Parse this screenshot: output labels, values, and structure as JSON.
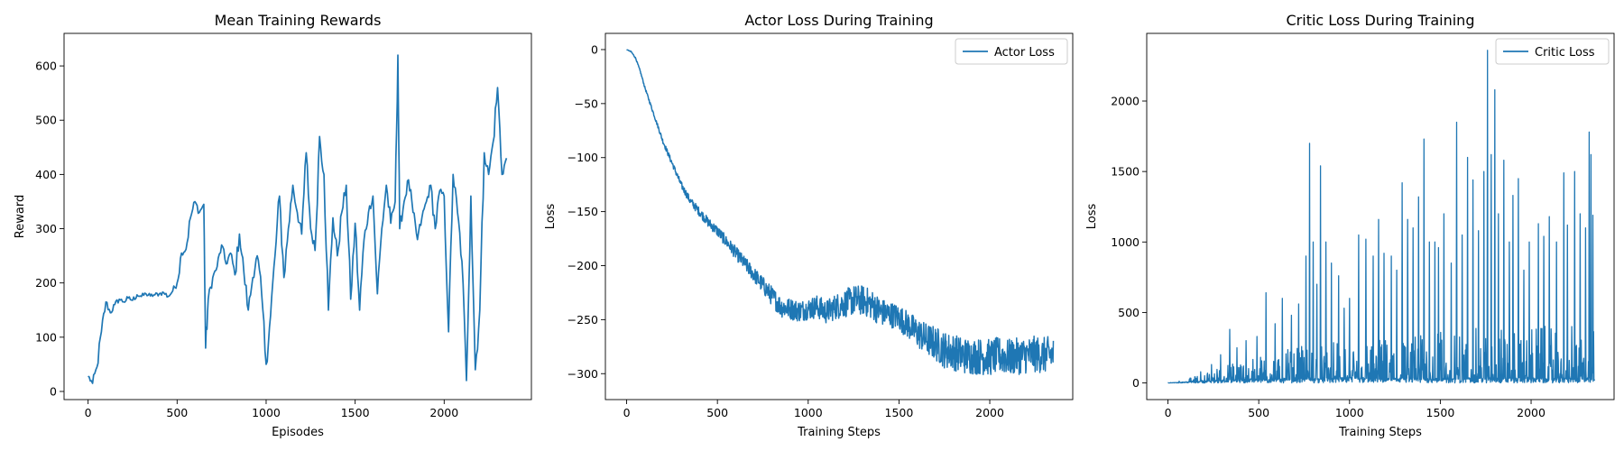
{
  "chart_data": [
    {
      "type": "line",
      "title": "Mean Training Rewards",
      "xlabel": "Episodes",
      "ylabel": "Reward",
      "xlim": [
        -135,
        2490
      ],
      "ylim": [
        -15,
        660
      ],
      "xticks": [
        0,
        500,
        1000,
        1500,
        2000
      ],
      "yticks": [
        0,
        100,
        200,
        300,
        400,
        500,
        600
      ],
      "legend": null,
      "grid": false,
      "color": "#1f77b4",
      "series": [
        {
          "x": [
            0,
            25,
            50,
            75,
            100,
            125,
            150,
            175,
            200,
            225,
            250,
            275,
            300,
            325,
            350,
            375,
            400,
            425,
            450,
            475,
            500,
            525,
            550,
            575,
            600,
            625,
            650,
            660,
            675,
            700,
            725,
            750,
            775,
            800,
            825,
            850,
            875,
            900,
            925,
            950,
            975,
            1000,
            1025,
            1050,
            1075,
            1100,
            1125,
            1150,
            1175,
            1200,
            1225,
            1250,
            1275,
            1300,
            1325,
            1350,
            1375,
            1400,
            1425,
            1450,
            1475,
            1500,
            1525,
            1550,
            1575,
            1600,
            1625,
            1650,
            1675,
            1700,
            1725,
            1740,
            1750,
            1775,
            1800,
            1825,
            1850,
            1875,
            1900,
            1925,
            1950,
            1975,
            2000,
            2025,
            2050,
            2075,
            2100,
            2125,
            2150,
            2175,
            2200,
            2225,
            2250,
            2275,
            2300,
            2325,
            2350
          ],
          "y": [
            28,
            15,
            45,
            110,
            165,
            145,
            160,
            170,
            165,
            172,
            168,
            178,
            175,
            180,
            176,
            178,
            180,
            182,
            175,
            185,
            200,
            255,
            262,
            320,
            350,
            330,
            345,
            80,
            170,
            210,
            230,
            270,
            235,
            255,
            215,
            290,
            220,
            150,
            210,
            250,
            180,
            50,
            140,
            250,
            360,
            210,
            300,
            380,
            330,
            290,
            440,
            300,
            260,
            470,
            400,
            150,
            320,
            250,
            330,
            380,
            170,
            310,
            150,
            280,
            330,
            360,
            180,
            300,
            380,
            310,
            350,
            620,
            300,
            350,
            390,
            330,
            280,
            320,
            350,
            380,
            300,
            370,
            360,
            110,
            400,
            330,
            240,
            20,
            360,
            40,
            150,
            440,
            400,
            460,
            560,
            400,
            430
          ]
        }
      ]
    },
    {
      "type": "line",
      "title": "Actor Loss During Training",
      "xlabel": "Training Steps",
      "ylabel": "Loss",
      "xlim": [
        -117,
        2457
      ],
      "ylim": [
        -324,
        15
      ],
      "xticks": [
        0,
        500,
        1000,
        1500,
        2000
      ],
      "yticks": [
        0,
        -50,
        -100,
        -150,
        -200,
        -250,
        -300
      ],
      "legend": "top-right",
      "grid": false,
      "color": "#1f77b4",
      "series": [
        {
          "name": "Actor Loss",
          "x": [
            0,
            25,
            50,
            75,
            100,
            150,
            200,
            250,
            300,
            350,
            400,
            450,
            500,
            550,
            600,
            650,
            700,
            750,
            800,
            850,
            900,
            950,
            1000,
            1050,
            1100,
            1150,
            1200,
            1250,
            1300,
            1350,
            1400,
            1450,
            1500,
            1550,
            1600,
            1650,
            1700,
            1750,
            1800,
            1850,
            1900,
            1950,
            2000,
            2050,
            2100,
            2150,
            2200,
            2250,
            2300,
            2350
          ],
          "y": [
            0,
            -2,
            -8,
            -20,
            -35,
            -60,
            -85,
            -105,
            -125,
            -140,
            -150,
            -160,
            -168,
            -178,
            -188,
            -198,
            -208,
            -218,
            -228,
            -238,
            -240,
            -242,
            -240,
            -238,
            -243,
            -238,
            -235,
            -232,
            -232,
            -236,
            -243,
            -245,
            -248,
            -255,
            -262,
            -268,
            -272,
            -278,
            -280,
            -283,
            -284,
            -284,
            -285,
            -283,
            -285,
            -284,
            -283,
            -282,
            -283,
            -282
          ],
          "noise": [
            0,
            0.4,
            0.6,
            0.8,
            1,
            1.5,
            2,
            2.5,
            3,
            3.5,
            4,
            4.5,
            5,
            5.5,
            6,
            6.5,
            7,
            8,
            9,
            10,
            10,
            10,
            10,
            11,
            11,
            12,
            13,
            14,
            14,
            14,
            13,
            12,
            12,
            13,
            14,
            15,
            16,
            17,
            17,
            17,
            17,
            17,
            17,
            17,
            17,
            17,
            17,
            17,
            17,
            17
          ]
        }
      ]
    },
    {
      "type": "line",
      "title": "Critic Loss During Training",
      "xlabel": "Training Steps",
      "ylabel": "Loss",
      "xlim": [
        -117,
        2457
      ],
      "ylim": [
        -118,
        2480
      ],
      "xticks": [
        0,
        500,
        1000,
        1500,
        2000
      ],
      "yticks": [
        0,
        500,
        1000,
        1500,
        2000
      ],
      "legend": "top-right",
      "grid": false,
      "color": "#1f77b4",
      "series": [
        {
          "name": "Critic Loss",
          "baseline_x": [
            0,
            100,
            200,
            300,
            400,
            500,
            700,
            900,
            1200,
            1500,
            1800,
            2100,
            2350
          ],
          "baseline_y": [
            0,
            5,
            10,
            15,
            20,
            20,
            25,
            25,
            25,
            25,
            25,
            25,
            25
          ],
          "spread_x": [
            0,
            100,
            200,
            300,
            400,
            600,
            800,
            1000,
            1200,
            1400,
            1600,
            1800,
            2000,
            2200,
            2350
          ],
          "spread_y": [
            2,
            20,
            60,
            110,
            150,
            200,
            250,
            280,
            300,
            330,
            350,
            380,
            380,
            380,
            380
          ],
          "spikes_x": [
            180,
            240,
            290,
            340,
            380,
            430,
            490,
            540,
            590,
            630,
            680,
            720,
            760,
            780,
            800,
            820,
            840,
            870,
            900,
            940,
            970,
            1000,
            1050,
            1090,
            1130,
            1160,
            1190,
            1230,
            1260,
            1290,
            1320,
            1350,
            1380,
            1410,
            1440,
            1470,
            1490,
            1520,
            1560,
            1590,
            1620,
            1650,
            1680,
            1710,
            1740,
            1760,
            1780,
            1800,
            1820,
            1850,
            1880,
            1900,
            1930,
            1960,
            1990,
            2040,
            2070,
            2100,
            2140,
            2180,
            2200,
            2240,
            2270,
            2300,
            2320,
            2330,
            2340
          ],
          "spikes_y": [
            80,
            130,
            200,
            380,
            250,
            300,
            330,
            640,
            420,
            600,
            480,
            560,
            900,
            1700,
            1000,
            700,
            1540,
            1000,
            850,
            760,
            530,
            600,
            1050,
            1020,
            900,
            1160,
            920,
            900,
            800,
            1420,
            1160,
            1100,
            1320,
            1730,
            1000,
            1000,
            960,
            1200,
            850,
            1850,
            1050,
            1600,
            1440,
            1080,
            1500,
            2360,
            1620,
            2080,
            1200,
            1580,
            1000,
            1330,
            1450,
            800,
            1000,
            1130,
            1040,
            1180,
            1000,
            1490,
            1120,
            1500,
            1200,
            1100,
            1780,
            1620,
            1190
          ]
        }
      ]
    }
  ]
}
